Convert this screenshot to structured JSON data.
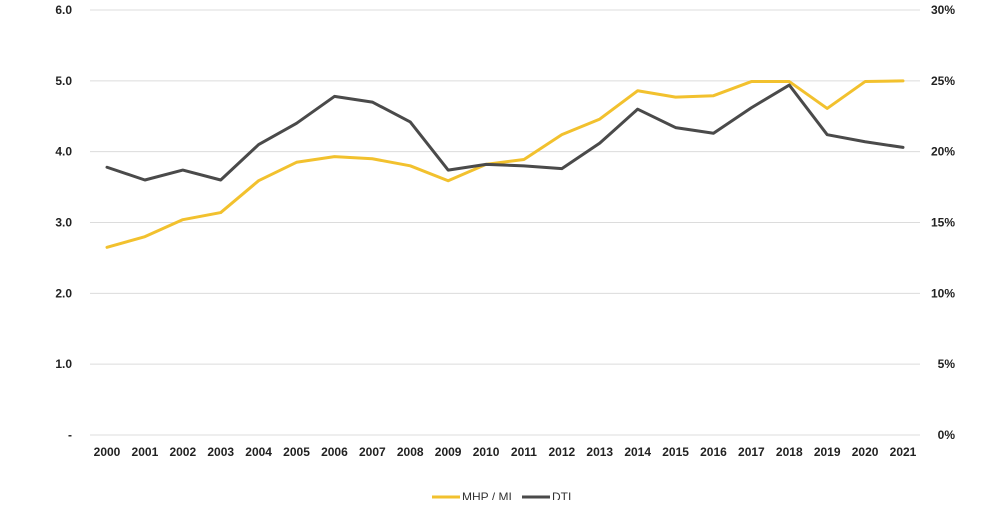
{
  "chart_data": {
    "type": "line",
    "categories": [
      "2000",
      "2001",
      "2002",
      "2003",
      "2004",
      "2005",
      "2006",
      "2007",
      "2008",
      "2009",
      "2010",
      "2011",
      "2012",
      "2013",
      "2014",
      "2015",
      "2016",
      "2017",
      "2018",
      "2019",
      "2020",
      "2021"
    ],
    "series": [
      {
        "name": "MHP / MI",
        "axis": "left",
        "color": "#F2C12E",
        "values": [
          2.65,
          2.8,
          3.04,
          3.14,
          3.59,
          3.85,
          3.93,
          3.9,
          3.8,
          3.59,
          3.82,
          3.89,
          4.24,
          4.46,
          4.86,
          4.77,
          4.79,
          4.99,
          4.99,
          4.61,
          4.99,
          5.0
        ]
      },
      {
        "name": "DTI",
        "axis": "right",
        "color": "#4A4A4A",
        "values": [
          0.189,
          0.18,
          0.187,
          0.18,
          0.205,
          0.22,
          0.239,
          0.235,
          0.221,
          0.187,
          0.191,
          0.19,
          0.188,
          0.206,
          0.23,
          0.217,
          0.213,
          0.231,
          0.247,
          0.212,
          0.207,
          0.203
        ]
      }
    ],
    "y_left": {
      "ylim": [
        0,
        6
      ],
      "ticks": [
        "-",
        "1.0",
        "2.0",
        "3.0",
        "4.0",
        "5.0",
        "6.0"
      ]
    },
    "y_right": {
      "ylim": [
        0,
        0.3
      ],
      "ticks": [
        "0%",
        "5%",
        "10%",
        "15%",
        "20%",
        "25%",
        "30%"
      ]
    },
    "grid": true,
    "legend_position": "bottom-center",
    "legend": [
      "MHP / MI",
      "DTI"
    ]
  }
}
